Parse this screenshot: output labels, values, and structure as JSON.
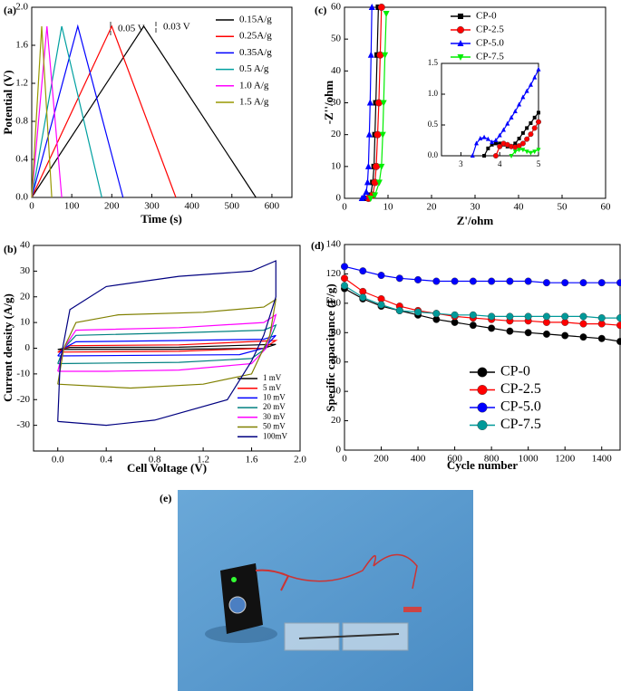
{
  "chart_data": [
    {
      "type": "line",
      "label": "(a)",
      "x_label": "Time (s)",
      "y_label": "Potential (V)",
      "xlim": [
        0,
        650
      ],
      "ylim": [
        0,
        2.0
      ],
      "xticks": [
        0,
        100,
        200,
        300,
        400,
        500,
        600
      ],
      "yticks": [
        {
          "value": 0,
          "label": "0.0"
        },
        0.4,
        0.8,
        1.2,
        1.6,
        {
          "value": 2.0,
          "label": "2.0"
        }
      ],
      "annotations": [
        "0.05 V",
        "0.03 V"
      ],
      "series": [
        {
          "name": "0.15A/g",
          "color": "#000000",
          "x": [
            0,
            280,
            560
          ],
          "values": [
            0,
            1.8,
            0
          ]
        },
        {
          "name": "0.25A/g",
          "color": "#ff0000",
          "x": [
            0,
            200,
            360
          ],
          "values": [
            0,
            1.8,
            0
          ]
        },
        {
          "name": "0.35A/g",
          "color": "#0000ff",
          "x": [
            0,
            115,
            228
          ],
          "values": [
            0,
            1.8,
            0
          ]
        },
        {
          "name": "0.5  A/g",
          "color": "#00a0a0",
          "x": [
            0,
            75,
            175
          ],
          "values": [
            0,
            1.8,
            0
          ]
        },
        {
          "name": "1.0  A/g",
          "color": "#ff00ff",
          "x": [
            0,
            38,
            75
          ],
          "values": [
            0,
            1.8,
            0
          ]
        },
        {
          "name": "1.5  A/g",
          "color": "#999900",
          "x": [
            0,
            25,
            50
          ],
          "values": [
            0,
            1.8,
            0
          ]
        }
      ]
    },
    {
      "type": "line",
      "label": "(b)",
      "x_label": "Cell Voltage (V)",
      "y_label": "Current density (A/g)",
      "xlim": [
        -0.2,
        2.0
      ],
      "ylim": [
        -40,
        40
      ],
      "xticks": [
        {
          "value": 0,
          "label": "0.0"
        },
        0.4,
        0.8,
        1.2,
        1.6,
        {
          "value": 2.0,
          "label": "2.0"
        }
      ],
      "yticks": [
        -30,
        -20,
        -10,
        0,
        10,
        20,
        30,
        40
      ],
      "series": [
        {
          "name": "1  mV",
          "color": "#000000",
          "x": [
            0,
            0.1,
            1,
            1.8,
            1.7,
            1,
            0
          ],
          "values": [
            -0.5,
            0.3,
            0.4,
            1.5,
            0,
            -0.4,
            -0.5
          ]
        },
        {
          "name": "5  mV",
          "color": "#ff0000",
          "x": [
            0,
            0.1,
            1,
            1.8,
            1.7,
            1,
            0
          ],
          "values": [
            -1.5,
            1,
            1.3,
            3,
            0,
            -1.2,
            -1.5
          ]
        },
        {
          "name": "10 mV",
          "color": "#0000ff",
          "x": [
            0,
            0.05,
            0.15,
            1,
            1.7,
            1.8,
            1.7,
            1.5,
            0
          ],
          "values": [
            -3,
            0,
            2.5,
            3,
            3.5,
            5,
            0,
            -2.5,
            -3
          ]
        },
        {
          "name": "20 mV",
          "color": "#008080",
          "x": [
            0,
            0.05,
            0.15,
            1,
            1.7,
            1.8,
            1.72,
            1.6,
            1,
            0
          ],
          "values": [
            -6,
            0,
            5,
            6,
            7,
            9,
            0,
            -4,
            -5.5,
            -6
          ]
        },
        {
          "name": "30 mV",
          "color": "#ff00ff",
          "x": [
            0,
            0.05,
            0.15,
            1,
            1.7,
            1.8,
            1.72,
            1.6,
            1,
            0.4,
            0
          ],
          "values": [
            -9,
            0,
            7,
            8,
            10,
            13,
            0,
            -6,
            -8.5,
            -9,
            -9
          ]
        },
        {
          "name": "50 mV",
          "color": "#808000",
          "x": [
            0,
            0.05,
            0.15,
            0.5,
            1.2,
            1.7,
            1.8,
            1.75,
            1.6,
            1.2,
            0.6,
            0
          ],
          "values": [
            -14,
            0,
            10,
            13,
            14,
            16,
            19,
            5,
            -10,
            -14,
            -15.5,
            -14
          ]
        },
        {
          "name": "100mV",
          "color": "#000080",
          "x": [
            0,
            0.02,
            0.1,
            0.4,
            1.0,
            1.6,
            1.8,
            1.8,
            1.7,
            1.6,
            1.4,
            0.8,
            0.4,
            0
          ],
          "values": [
            -28.5,
            -5,
            15,
            24,
            28,
            30,
            34,
            20,
            5,
            -5,
            -20,
            -28,
            -30,
            -28.5
          ]
        }
      ]
    },
    {
      "type": "line",
      "label": "(c)",
      "x_label": "Z'/ohm",
      "y_label": "-Z''/ohm",
      "xlim": [
        0,
        60
      ],
      "ylim": [
        0,
        60
      ],
      "xticks": [
        0,
        10,
        20,
        30,
        40,
        50,
        60
      ],
      "yticks": [
        0,
        10,
        20,
        30,
        40,
        50,
        60
      ],
      "series": [
        {
          "name": "CP-0",
          "color": "#000000",
          "marker": "square",
          "x": [
            5,
            6,
            6.5,
            6.8,
            7,
            7.2,
            7.5,
            7.8
          ],
          "values": [
            0,
            1,
            5,
            10,
            20,
            30,
            45,
            60
          ]
        },
        {
          "name": "CP-2.5",
          "color": "#ff0000",
          "marker": "circle",
          "x": [
            5.5,
            6.5,
            7,
            7.3,
            7.6,
            7.9,
            8.2,
            8.5
          ],
          "values": [
            0,
            1,
            5,
            10,
            20,
            30,
            45,
            60
          ]
        },
        {
          "name": "CP-5.0",
          "color": "#0000ff",
          "marker": "triangle",
          "x": [
            4,
            4.5,
            5,
            5.3,
            5.5,
            5.7,
            5.9,
            6.1,
            6.3
          ],
          "values": [
            0,
            0.5,
            2,
            5,
            10,
            20,
            30,
            45,
            60
          ]
        },
        {
          "name": "CP-7.5",
          "color": "#00ee00",
          "marker": "triangle-down",
          "x": [
            6,
            7,
            8,
            8.5,
            8.8,
            9,
            9.3,
            9.6
          ],
          "values": [
            0,
            1,
            5,
            10,
            20,
            30,
            45,
            58
          ]
        }
      ]
    },
    {
      "type": "line",
      "xlim": [
        2.5,
        5
      ],
      "ylim": [
        0,
        1.5
      ],
      "xticks": [
        3,
        4,
        5
      ],
      "yticks": [
        {
          "value": 0,
          "label": "0.0"
        },
        0.5,
        {
          "value": 1.0,
          "label": "1.0"
        },
        1.5
      ],
      "series": [
        {
          "color": "#000000",
          "marker": "square",
          "x": [
            3.6,
            3.7,
            3.8,
            3.9,
            4.0,
            4.1,
            4.2,
            4.3,
            4.4,
            4.5,
            4.6,
            4.7,
            4.8,
            4.9,
            5.0
          ],
          "values": [
            0,
            0.12,
            0.18,
            0.2,
            0.2,
            0.18,
            0.15,
            0.15,
            0.2,
            0.28,
            0.37,
            0.45,
            0.53,
            0.62,
            0.7
          ]
        },
        {
          "color": "#ff0000",
          "marker": "circle",
          "x": [
            3.9,
            4.0,
            4.1,
            4.2,
            4.3,
            4.4,
            4.5,
            4.6,
            4.7,
            4.8,
            4.9,
            5.0
          ],
          "values": [
            0,
            0.15,
            0.2,
            0.18,
            0.15,
            0.14,
            0.16,
            0.2,
            0.27,
            0.35,
            0.45,
            0.55
          ]
        },
        {
          "color": "#0000ff",
          "marker": "triangle",
          "x": [
            3.3,
            3.4,
            3.5,
            3.6,
            3.7,
            3.8,
            3.9,
            4.0,
            4.1,
            4.2,
            4.3,
            4.4,
            4.5,
            4.6,
            4.7,
            4.8,
            4.9,
            5.0
          ],
          "values": [
            0,
            0.2,
            0.28,
            0.3,
            0.27,
            0.22,
            0.25,
            0.33,
            0.42,
            0.52,
            0.62,
            0.72,
            0.83,
            0.95,
            1.05,
            1.15,
            1.27,
            1.4
          ]
        },
        {
          "color": "#00ee00",
          "marker": "triangle-down",
          "x": [
            4.3,
            4.4,
            4.5,
            4.6,
            4.7,
            4.8,
            4.9,
            5.0
          ],
          "values": [
            0,
            0.07,
            0.1,
            0.1,
            0.07,
            0.05,
            0.07,
            0.1
          ]
        }
      ]
    },
    {
      "type": "line",
      "label": "(d)",
      "x_label": "Cycle number",
      "y_label": "Specific capacitance (F/g)",
      "xlim": [
        0,
        1500
      ],
      "ylim": [
        0,
        140
      ],
      "xticks": [
        0,
        200,
        400,
        600,
        800,
        1000,
        1200,
        1400
      ],
      "yticks": [
        0,
        20,
        40,
        60,
        80,
        100,
        120,
        140
      ],
      "series": [
        {
          "name": "CP-0",
          "color": "#000000",
          "marker": "circle",
          "x": [
            0,
            100,
            200,
            300,
            400,
            500,
            600,
            700,
            800,
            900,
            1000,
            1100,
            1200,
            1300,
            1400,
            1500
          ],
          "values": [
            110,
            103,
            98,
            95,
            92,
            89,
            87,
            85,
            83,
            81,
            80,
            79,
            78,
            77,
            76,
            74
          ]
        },
        {
          "name": "CP-2.5",
          "color": "#ff0000",
          "marker": "circle",
          "x": [
            0,
            100,
            200,
            300,
            400,
            500,
            600,
            700,
            800,
            900,
            1000,
            1100,
            1200,
            1300,
            1400,
            1500
          ],
          "values": [
            117,
            108,
            103,
            98,
            95,
            93,
            91,
            90,
            89,
            88,
            88,
            87,
            87,
            86,
            86,
            85
          ]
        },
        {
          "name": "CP-5.0",
          "color": "#0000ff",
          "marker": "circle",
          "x": [
            0,
            100,
            200,
            300,
            400,
            500,
            600,
            700,
            800,
            900,
            1000,
            1100,
            1200,
            1300,
            1400,
            1500
          ],
          "values": [
            125,
            122,
            119,
            117,
            116,
            115,
            115,
            115,
            115,
            115,
            115,
            114,
            114,
            114,
            114,
            114
          ]
        },
        {
          "name": "CP-7.5",
          "color": "#009999",
          "marker": "circle",
          "x": [
            0,
            100,
            200,
            300,
            400,
            500,
            600,
            700,
            800,
            900,
            1000,
            1100,
            1200,
            1300,
            1400,
            1500
          ],
          "values": [
            112,
            104,
            99,
            95,
            94,
            93,
            92,
            92,
            91,
            91,
            91,
            91,
            91,
            91,
            90,
            90
          ]
        }
      ]
    },
    {
      "type": "photo",
      "label": "(e)"
    }
  ]
}
